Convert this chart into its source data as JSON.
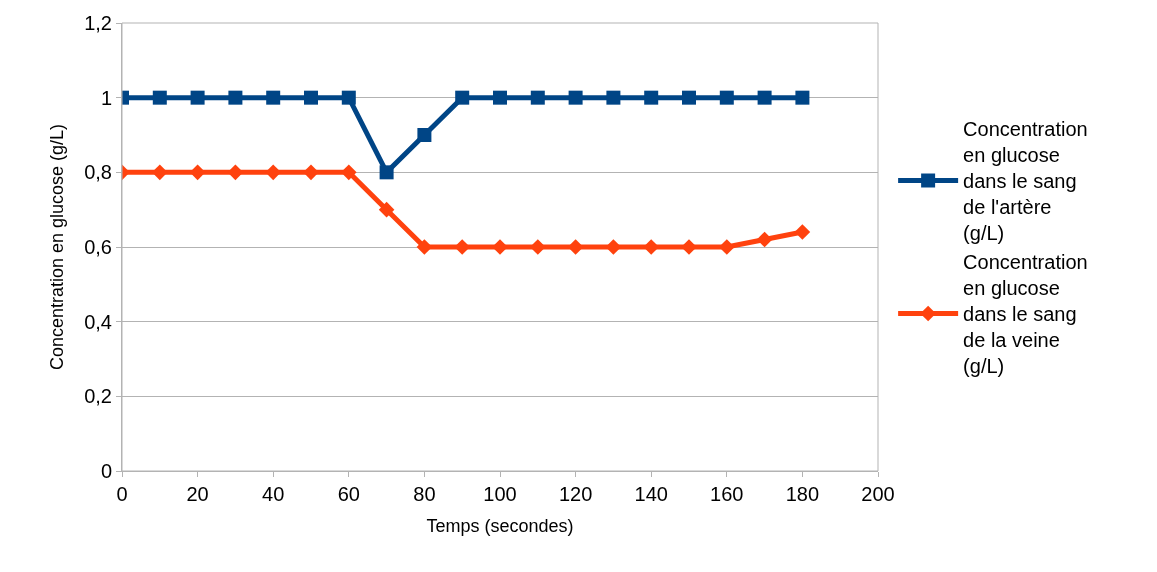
{
  "chart_data": {
    "type": "line",
    "xlabel": "Temps (secondes)",
    "ylabel": "Concentration en glucose (g/L)",
    "x": [
      0,
      10,
      20,
      30,
      40,
      50,
      60,
      70,
      80,
      90,
      100,
      110,
      120,
      130,
      140,
      150,
      160,
      170,
      180
    ],
    "series": [
      {
        "name": "Concentration en glucose dans le sang de l'artère (g/L)",
        "color": "#004586",
        "marker": "square",
        "values": [
          1,
          1,
          1,
          1,
          1,
          1,
          1,
          0.8,
          0.9,
          1,
          1,
          1,
          1,
          1,
          1,
          1,
          1,
          1,
          1
        ]
      },
      {
        "name": "Concentration en glucose dans le sang de la veine (g/L)",
        "color": "#ff420e",
        "marker": "diamond",
        "values": [
          0.8,
          0.8,
          0.8,
          0.8,
          0.8,
          0.8,
          0.8,
          0.7,
          0.6,
          0.6,
          0.6,
          0.6,
          0.6,
          0.6,
          0.6,
          0.6,
          0.6,
          0.62,
          0.64
        ]
      }
    ],
    "xlim": [
      0,
      200
    ],
    "xticks": [
      0,
      20,
      40,
      60,
      80,
      100,
      120,
      140,
      160,
      180,
      200
    ],
    "ylim": [
      0,
      1.2
    ],
    "yticks": [
      0,
      {
        "value": 0.2,
        "label": "0,2"
      },
      {
        "value": 0.4,
        "label": "0,4"
      },
      {
        "value": 0.6,
        "label": "0,6"
      },
      {
        "value": 0.8,
        "label": "0,8"
      },
      1,
      {
        "value": 1.2,
        "label": "1,2"
      }
    ],
    "grid": "y",
    "legend": "right",
    "line_style": "solid"
  }
}
